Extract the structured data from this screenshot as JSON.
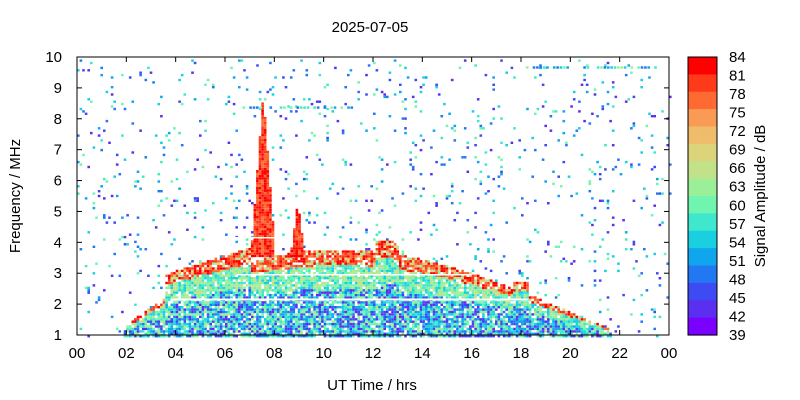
{
  "chart_data": {
    "type": "heatmap",
    "title": "2025-07-05",
    "xlabel": "UT Time / hrs",
    "ylabel": "Frequency / MHz",
    "colorbar_label": "Signal Amplitude / dB",
    "xlim": [
      0,
      24
    ],
    "ylim": [
      1,
      10
    ],
    "x_ticks": [
      "00",
      "02",
      "04",
      "06",
      "08",
      "10",
      "12",
      "14",
      "16",
      "18",
      "20",
      "22",
      "00"
    ],
    "y_ticks": [
      "1",
      "2",
      "3",
      "4",
      "5",
      "6",
      "7",
      "8",
      "9",
      "10"
    ],
    "colorbar_range": [
      39,
      84
    ],
    "colorbar_ticks": [
      "84",
      "81",
      "78",
      "75",
      "72",
      "69",
      "66",
      "63",
      "60",
      "57",
      "54",
      "51",
      "48",
      "45",
      "42",
      "39"
    ],
    "colorbar_colors": [
      "#ff0000",
      "#ff3a1a",
      "#ff6a33",
      "#f99a55",
      "#eebc6a",
      "#dcd47a",
      "#c2e28a",
      "#9cef99",
      "#6ff5b0",
      "#3fe8cc",
      "#19cfe0",
      "#0fa6ee",
      "#2277f2",
      "#3f4bf2",
      "#5a2ff0",
      "#7a00ff"
    ],
    "grid": false
  }
}
